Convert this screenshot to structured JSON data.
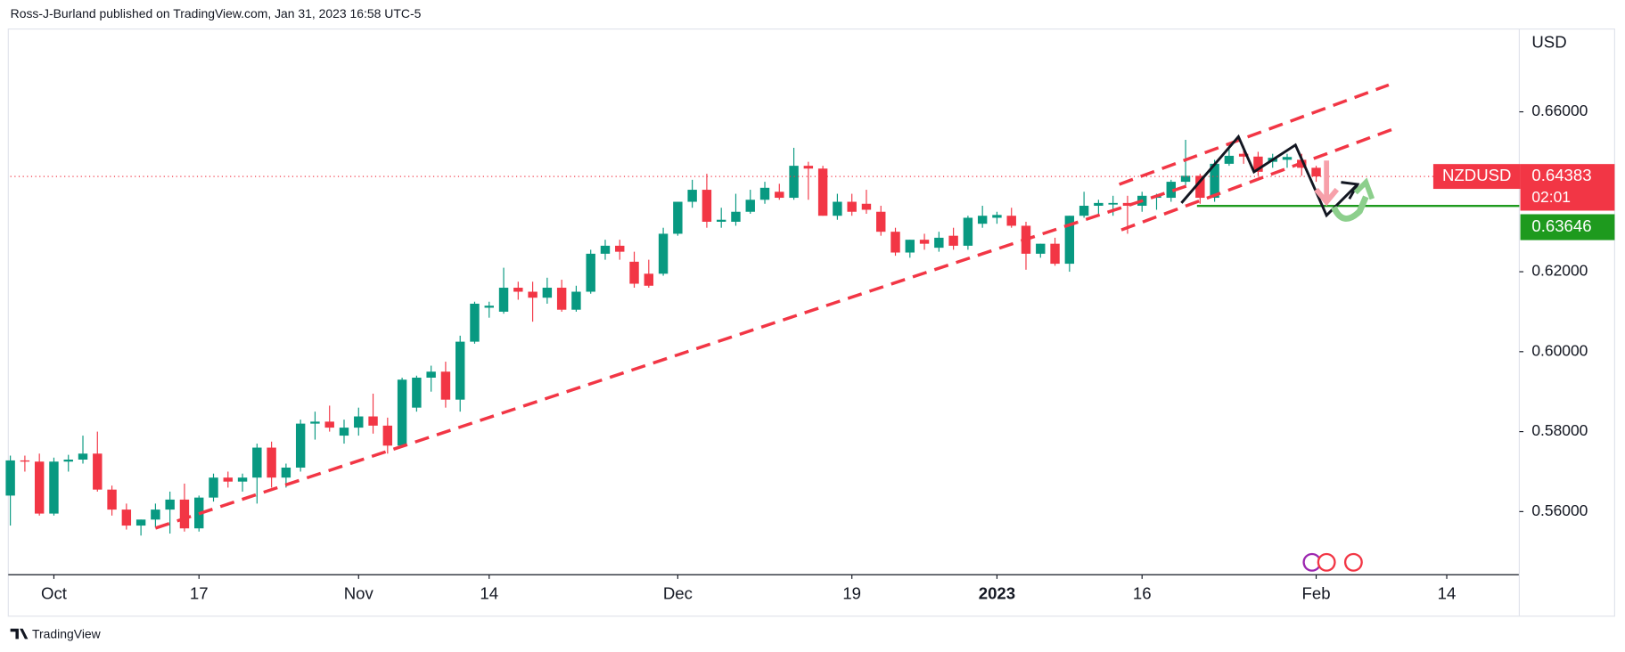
{
  "chart_data": {
    "type": "candlestick",
    "publisher_line": "Ross-J-Burland published on TradingView.com, Jan 31, 2023 16:58 UTC-5",
    "currency": "USD",
    "symbol": "NZDUSD",
    "last_price": 0.64383,
    "countdown": "02:01",
    "level": 0.63646,
    "footer": "TradingView",
    "up_color": "#089981",
    "down_color": "#f23645",
    "level_color": "#1e9a1e",
    "grid": false,
    "open": [
      0.564,
      0.5728,
      0.5725,
      0.5595,
      0.5725,
      0.573,
      0.5745,
      0.5655,
      0.5605,
      0.5565,
      0.558,
      0.5605,
      0.563,
      0.5558,
      0.5635,
      0.5685,
      0.5675,
      0.5685,
      0.576,
      0.5685,
      0.571,
      0.582,
      0.5825,
      0.579,
      0.581,
      0.5838,
      0.5815,
      0.5765,
      0.586,
      0.5935,
      0.595,
      0.588,
      0.6025,
      0.611,
      0.61,
      0.616,
      0.615,
      0.6135,
      0.616,
      0.6105,
      0.615,
      0.6245,
      0.6265,
      0.6225,
      0.6195,
      0.6195,
      0.6295,
      0.6375,
      0.6405,
      0.6325,
      0.6325,
      0.635,
      0.638,
      0.64,
      0.6385,
      0.6465,
      0.6458,
      0.634,
      0.6375,
      0.637,
      0.635,
      0.63,
      0.6248,
      0.628,
      0.626,
      0.629,
      0.6265,
      0.632,
      0.6335,
      0.634,
      0.6315,
      0.6245,
      0.627,
      0.622,
      0.634,
      0.6365,
      0.6368,
      0.6372,
      0.6365,
      0.6385,
      0.6385,
      0.6425,
      0.644,
      0.6385,
      0.647,
      0.6495,
      0.6488,
      0.6475,
      0.648,
      0.648,
      0.646
    ],
    "high": [
      0.574,
      0.574,
      0.5745,
      0.5735,
      0.5742,
      0.579,
      0.58,
      0.5665,
      0.562,
      0.558,
      0.562,
      0.565,
      0.567,
      0.564,
      0.5695,
      0.57,
      0.5695,
      0.577,
      0.5775,
      0.572,
      0.583,
      0.585,
      0.5865,
      0.583,
      0.586,
      0.5895,
      0.5835,
      0.5935,
      0.594,
      0.5965,
      0.5975,
      0.604,
      0.6125,
      0.6125,
      0.621,
      0.6175,
      0.6175,
      0.6185,
      0.618,
      0.6165,
      0.6255,
      0.628,
      0.628,
      0.625,
      0.623,
      0.631,
      0.6375,
      0.643,
      0.6445,
      0.636,
      0.6395,
      0.6405,
      0.6425,
      0.642,
      0.651,
      0.6475,
      0.6465,
      0.6395,
      0.6395,
      0.6405,
      0.6365,
      0.631,
      0.628,
      0.6295,
      0.63,
      0.631,
      0.634,
      0.6365,
      0.635,
      0.636,
      0.6325,
      0.627,
      0.6285,
      0.634,
      0.64,
      0.638,
      0.639,
      0.639,
      0.64,
      0.6395,
      0.643,
      0.653,
      0.6445,
      0.648,
      0.652,
      0.6515,
      0.65,
      0.6495,
      0.6495,
      0.6495,
      0.6465
    ],
    "low": [
      0.5565,
      0.57,
      0.559,
      0.559,
      0.57,
      0.572,
      0.565,
      0.559,
      0.5555,
      0.554,
      0.556,
      0.5545,
      0.555,
      0.555,
      0.5625,
      0.566,
      0.565,
      0.562,
      0.566,
      0.566,
      0.57,
      0.578,
      0.58,
      0.577,
      0.579,
      0.5795,
      0.5745,
      0.576,
      0.585,
      0.59,
      0.586,
      0.585,
      0.602,
      0.6085,
      0.6095,
      0.613,
      0.6075,
      0.612,
      0.61,
      0.61,
      0.6145,
      0.623,
      0.623,
      0.616,
      0.616,
      0.619,
      0.629,
      0.636,
      0.631,
      0.631,
      0.6315,
      0.6345,
      0.637,
      0.638,
      0.638,
      0.638,
      0.634,
      0.633,
      0.634,
      0.6345,
      0.629,
      0.624,
      0.6235,
      0.6255,
      0.625,
      0.6255,
      0.6255,
      0.631,
      0.632,
      0.631,
      0.6205,
      0.6235,
      0.6215,
      0.62,
      0.6335,
      0.6345,
      0.634,
      0.6295,
      0.635,
      0.6355,
      0.6375,
      0.6415,
      0.637,
      0.6375,
      0.6465,
      0.647,
      0.644,
      0.646,
      0.646,
      0.644,
      0.6425
    ],
    "close": [
      0.5728,
      0.5725,
      0.5595,
      0.5725,
      0.573,
      0.5745,
      0.5655,
      0.5605,
      0.5565,
      0.558,
      0.5605,
      0.563,
      0.5558,
      0.5635,
      0.5685,
      0.5675,
      0.5685,
      0.576,
      0.5685,
      0.571,
      0.582,
      0.5825,
      0.581,
      0.581,
      0.5838,
      0.5815,
      0.5765,
      0.593,
      0.5935,
      0.595,
      0.588,
      0.6025,
      0.612,
      0.6115,
      0.616,
      0.615,
      0.6135,
      0.616,
      0.6105,
      0.615,
      0.6245,
      0.6265,
      0.625,
      0.617,
      0.6165,
      0.6295,
      0.6375,
      0.6405,
      0.6325,
      0.633,
      0.635,
      0.638,
      0.641,
      0.6385,
      0.6465,
      0.6458,
      0.634,
      0.6375,
      0.635,
      0.6355,
      0.63,
      0.6248,
      0.628,
      0.627,
      0.6285,
      0.6265,
      0.6335,
      0.634,
      0.6342,
      0.6315,
      0.6245,
      0.627,
      0.622,
      0.634,
      0.6365,
      0.6372,
      0.6372,
      0.6365,
      0.639,
      0.639,
      0.6425,
      0.644,
      0.6385,
      0.647,
      0.649,
      0.6488,
      0.645,
      0.6485,
      0.6487,
      0.646,
      0.64383
    ],
    "xlim": [
      0,
      104
    ],
    "xticks": [
      {
        "value": 3,
        "label": "Oct"
      },
      {
        "value": 13,
        "label": "17"
      },
      {
        "value": 24,
        "label": "Nov"
      },
      {
        "value": 33,
        "label": "14"
      },
      {
        "value": 46,
        "label": "Dec"
      },
      {
        "value": 58,
        "label": "19"
      },
      {
        "value": 68,
        "label": "2023"
      },
      {
        "value": 78,
        "label": "16"
      },
      {
        "value": 90,
        "label": "Feb"
      },
      {
        "value": 99,
        "label": "14"
      }
    ],
    "ylim": [
      0.5442,
      0.6802
    ],
    "yticks": [
      {
        "value": 0.56,
        "label": "0.56000"
      },
      {
        "value": 0.58,
        "label": "0.58000"
      },
      {
        "value": 0.6,
        "label": "0.60000"
      },
      {
        "value": 0.62,
        "label": "0.62000"
      },
      {
        "value": 0.66,
        "label": "0.66000"
      }
    ]
  }
}
